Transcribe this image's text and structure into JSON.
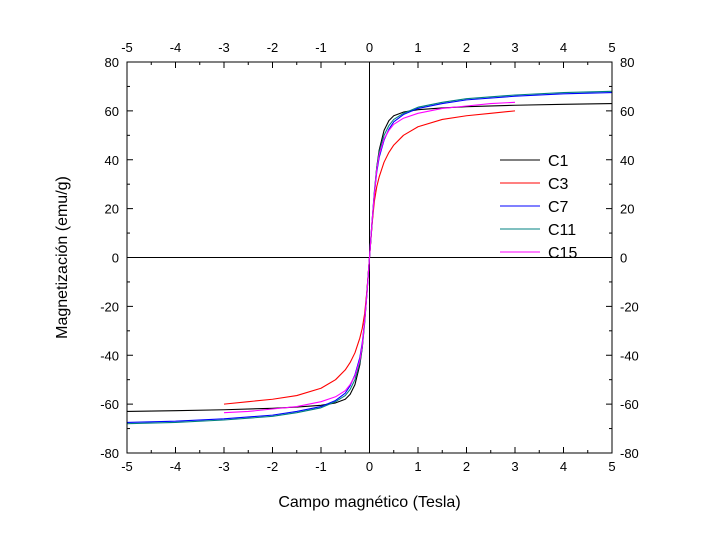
{
  "chart_data": {
    "type": "line",
    "title": "",
    "xlabel": "Campo magnético (Tesla)",
    "ylabel": "Magnetización (emu/g)",
    "xlim": [
      -5,
      5
    ],
    "ylim": [
      -80,
      80
    ],
    "x_ticks": [
      -5,
      -4,
      -3,
      -2,
      -1,
      0,
      1,
      2,
      3,
      4,
      5
    ],
    "y_ticks": [
      -80,
      -60,
      -40,
      -20,
      0,
      20,
      40,
      60,
      80
    ],
    "grid": false,
    "zero_lines": true,
    "mirror_axes": true,
    "legend_position": "right",
    "series": [
      {
        "name": "C1",
        "color": "#000000",
        "x": [
          -5,
          -4,
          -3,
          -2,
          -1.5,
          -1,
          -0.7,
          -0.5,
          -0.4,
          -0.3,
          -0.2,
          -0.15,
          -0.1,
          -0.05,
          0,
          0.05,
          0.1,
          0.15,
          0.2,
          0.3,
          0.4,
          0.5,
          0.7,
          1,
          1.5,
          2,
          3,
          4,
          5
        ],
        "y": [
          -63,
          -62.7,
          -62.3,
          -61.7,
          -61.2,
          -60.5,
          -59.5,
          -58,
          -56,
          -52,
          -44,
          -37,
          -26,
          -13,
          0,
          13,
          26,
          37,
          44,
          52,
          56,
          58,
          59.5,
          60.5,
          61.2,
          61.7,
          62.3,
          62.7,
          63
        ]
      },
      {
        "name": "C3",
        "color": "#ff0000",
        "x": [
          -3,
          -2.5,
          -2,
          -1.5,
          -1,
          -0.7,
          -0.5,
          -0.4,
          -0.3,
          -0.2,
          -0.15,
          -0.1,
          -0.05,
          0,
          0.05,
          0.1,
          0.15,
          0.2,
          0.3,
          0.4,
          0.5,
          0.7,
          1,
          1.5,
          2,
          2.5,
          3
        ],
        "y": [
          -60,
          -59,
          -58,
          -56.5,
          -53.5,
          -50,
          -46,
          -43,
          -39,
          -33,
          -29,
          -23,
          -13,
          0,
          13,
          23,
          29,
          33,
          39,
          43,
          46,
          50,
          53.5,
          56.5,
          58,
          59,
          60
        ]
      },
      {
        "name": "C7",
        "color": "#0000ff",
        "x": [
          -5,
          -4,
          -3,
          -2,
          -1.5,
          -1,
          -0.7,
          -0.5,
          -0.4,
          -0.3,
          -0.2,
          -0.15,
          -0.1,
          -0.05,
          0,
          0.05,
          0.1,
          0.15,
          0.2,
          0.3,
          0.4,
          0.5,
          0.7,
          1,
          1.5,
          2,
          3,
          4,
          5
        ],
        "y": [
          -67.5,
          -67,
          -66,
          -64.5,
          -63,
          -61,
          -58.5,
          -55.5,
          -52.5,
          -48,
          -41,
          -35,
          -26,
          -14,
          0,
          14,
          26,
          35,
          41,
          48,
          52.5,
          55.5,
          58.5,
          61,
          63,
          64.5,
          66,
          67,
          67.5
        ]
      },
      {
        "name": "C11",
        "color": "#008080",
        "x": [
          -5,
          -4,
          -3,
          -2,
          -1.5,
          -1,
          -0.7,
          -0.5,
          -0.4,
          -0.3,
          -0.2,
          -0.15,
          -0.1,
          -0.05,
          0,
          0.05,
          0.1,
          0.15,
          0.2,
          0.3,
          0.4,
          0.5,
          0.7,
          1,
          1.5,
          2,
          3,
          4,
          5
        ],
        "y": [
          -68,
          -67.5,
          -66.5,
          -65,
          -63.5,
          -61.5,
          -59,
          -56.5,
          -54,
          -50,
          -43,
          -37,
          -27,
          -14,
          0,
          14,
          27,
          37,
          43,
          50,
          54,
          56.5,
          59,
          61.5,
          63.5,
          65,
          66.5,
          67.5,
          68
        ]
      },
      {
        "name": "C15",
        "color": "#ff00ff",
        "x": [
          -3,
          -2.5,
          -2,
          -1.5,
          -1,
          -0.7,
          -0.5,
          -0.4,
          -0.3,
          -0.2,
          -0.15,
          -0.1,
          -0.05,
          0,
          0.05,
          0.1,
          0.15,
          0.2,
          0.3,
          0.4,
          0.5,
          0.7,
          1,
          1.5,
          2,
          2.5,
          3
        ],
        "y": [
          -63.5,
          -63,
          -62,
          -61,
          -59,
          -57,
          -54.5,
          -52,
          -48.5,
          -42,
          -36,
          -26,
          -14,
          0,
          14,
          26,
          36,
          42,
          48.5,
          52,
          54.5,
          57,
          59,
          61,
          62,
          63,
          63.5
        ]
      }
    ]
  }
}
